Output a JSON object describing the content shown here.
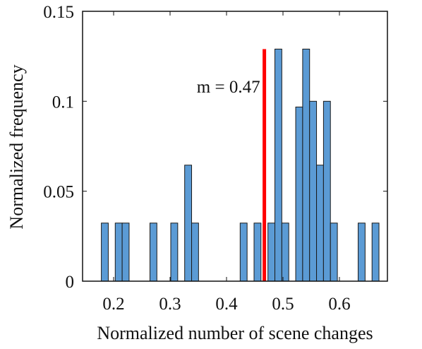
{
  "chart_data": {
    "type": "bar",
    "title": "",
    "xlabel": "Normalized number of scene changes",
    "ylabel": "Normalized frequency",
    "xlim": [
      0.145,
      0.685
    ],
    "ylim": [
      0,
      0.15
    ],
    "xticks": [
      "0.2",
      "0.3",
      "0.4",
      "0.5",
      "0.6"
    ],
    "xtick_values": [
      0.2,
      0.3,
      0.4,
      0.5,
      0.6
    ],
    "yticks": [
      "0",
      "0.05",
      "0.1",
      "0.15"
    ],
    "ytick_values": [
      0,
      0.05,
      0.1,
      0.15
    ],
    "grid": false,
    "bin_width": 0.0123,
    "bins": [
      {
        "x": 0.1844,
        "value": 0.0323
      },
      {
        "x": 0.209,
        "value": 0.0323
      },
      {
        "x": 0.2213,
        "value": 0.0323
      },
      {
        "x": 0.2705,
        "value": 0.0323
      },
      {
        "x": 0.3074,
        "value": 0.0323
      },
      {
        "x": 0.332,
        "value": 0.0645
      },
      {
        "x": 0.3443,
        "value": 0.0323
      },
      {
        "x": 0.4303,
        "value": 0.0323
      },
      {
        "x": 0.4549,
        "value": 0.0323
      },
      {
        "x": 0.4795,
        "value": 0.0323
      },
      {
        "x": 0.4918,
        "value": 0.129
      },
      {
        "x": 0.5041,
        "value": 0.0323
      },
      {
        "x": 0.5287,
        "value": 0.0968
      },
      {
        "x": 0.541,
        "value": 0.129
      },
      {
        "x": 0.5533,
        "value": 0.1
      },
      {
        "x": 0.5656,
        "value": 0.0645
      },
      {
        "x": 0.5779,
        "value": 0.1
      },
      {
        "x": 0.5902,
        "value": 0.0323
      },
      {
        "x": 0.6393,
        "value": 0.0323
      },
      {
        "x": 0.6639,
        "value": 0.0323
      }
    ],
    "bar_color": "#5b9bd5",
    "bar_edge_color": "#1a1a1a",
    "mean_line": {
      "x": 0.467,
      "y_top": 0.129,
      "color": "#ff0000"
    },
    "annotation": "m = 0.47"
  }
}
